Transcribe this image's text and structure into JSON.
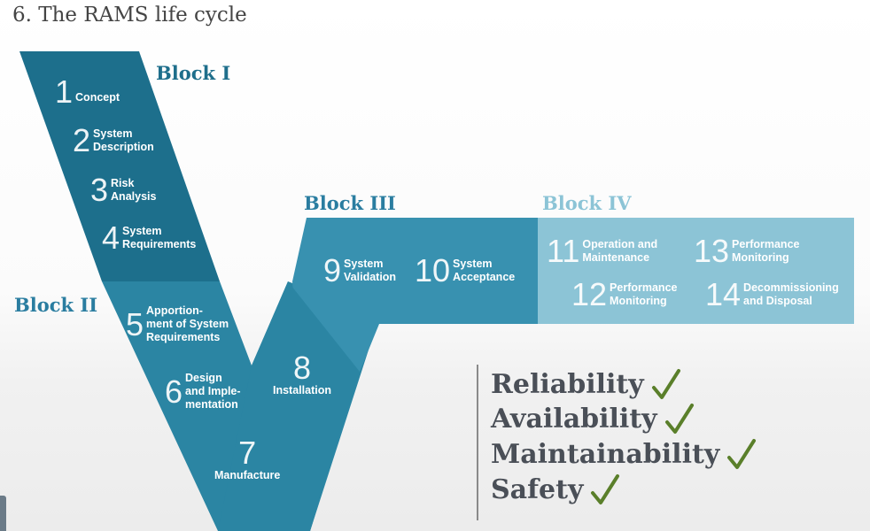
{
  "title": "6. The RAMS life cycle",
  "blocks": {
    "b1": "Block I",
    "b2": "Block II",
    "b3": "Block III",
    "b4": "Block IV"
  },
  "steps": [
    {
      "n": "1",
      "label": "Concept"
    },
    {
      "n": "2",
      "label": "System\nDescription"
    },
    {
      "n": "3",
      "label": "Risk\nAnalysis"
    },
    {
      "n": "4",
      "label": "System\nRequirements"
    },
    {
      "n": "5",
      "label": "Apportion-\nment of System\nRequirements"
    },
    {
      "n": "6",
      "label": "Design\nand Imple-\nmentation"
    },
    {
      "n": "7",
      "label": "Manufacture"
    },
    {
      "n": "8",
      "label": "Installation"
    },
    {
      "n": "9",
      "label": "System\nValidation"
    },
    {
      "n": "10",
      "label": "System\nAcceptance"
    },
    {
      "n": "11",
      "label": "Operation and\nMaintenance"
    },
    {
      "n": "12",
      "label": "Performance\nMonitoring"
    },
    {
      "n": "13",
      "label": "Performance\nMonitoring"
    },
    {
      "n": "14",
      "label": "Decommissioning\nand Disposal"
    }
  ],
  "rams": [
    "Reliability",
    "Availability",
    "Maintainability",
    "Safety"
  ],
  "colors": {
    "block1": "#1d6f8c",
    "block2": "#2b85a3",
    "block3": "#3a91ae",
    "block4": "#8cc4d6",
    "check": "#5a7f2a"
  }
}
